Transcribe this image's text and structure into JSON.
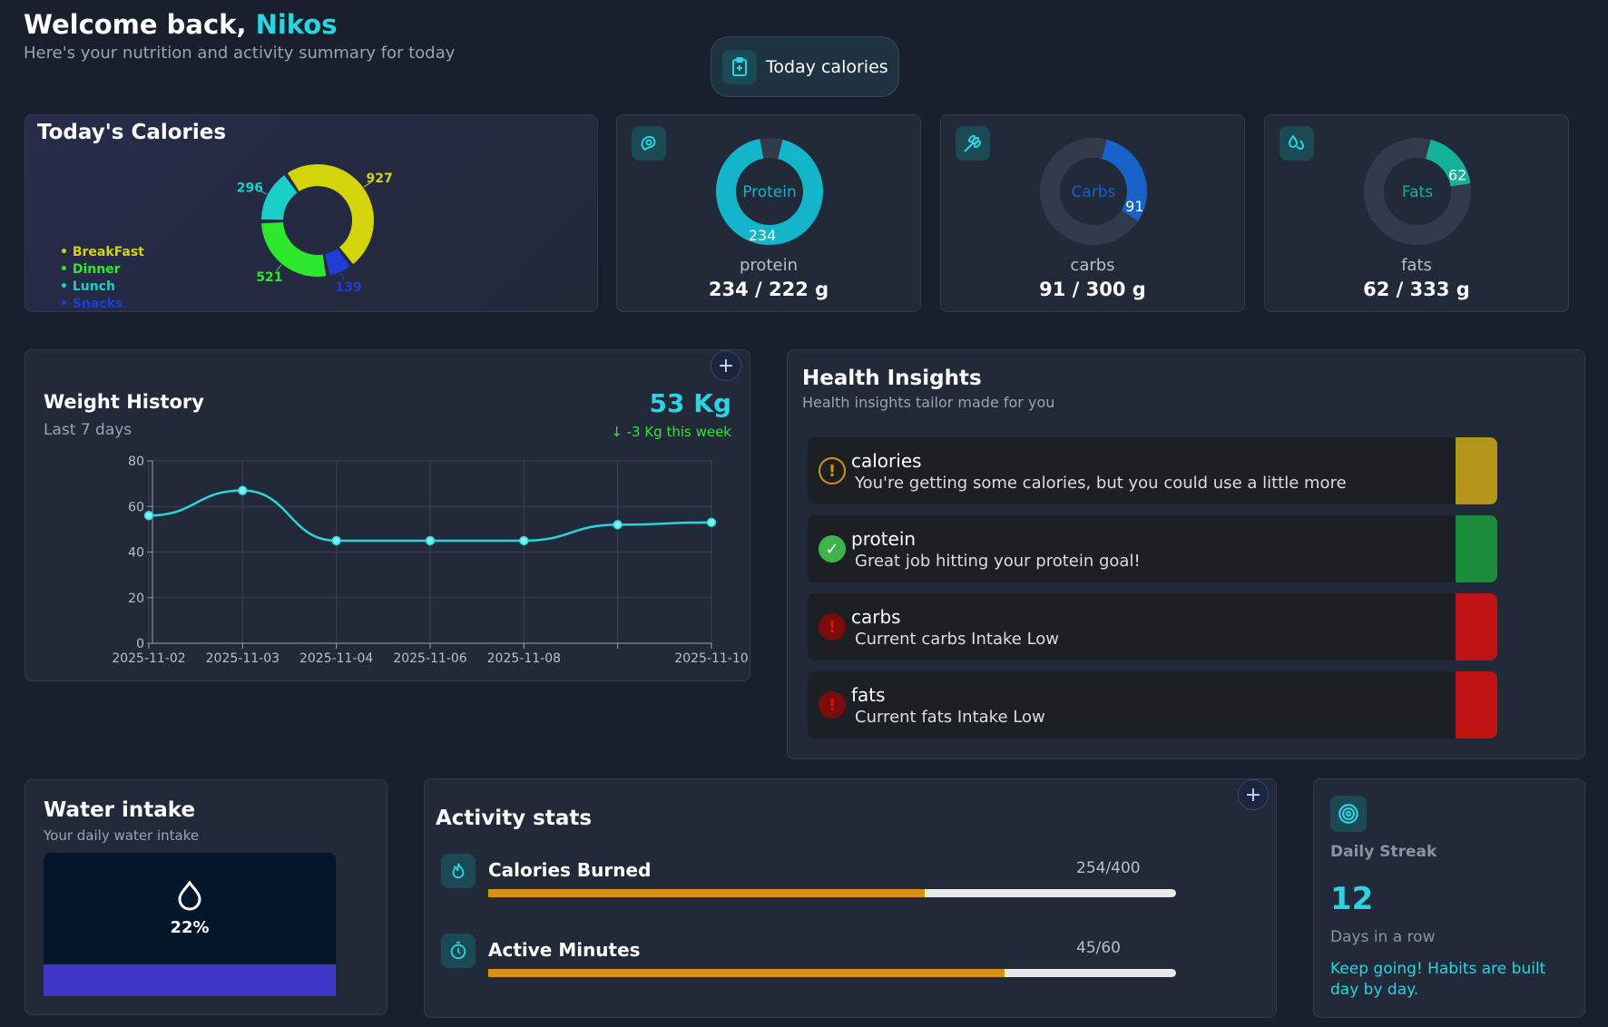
{
  "header": {
    "greeting": "Welcome back,",
    "user_name": "Nikos",
    "subtitle": "Here's your nutrition and activity summary for today",
    "today_button": "Today calories"
  },
  "calories_card": {
    "title": "Today's Calories",
    "legend": [
      {
        "label": "BreakFast",
        "color": "#d4d40a"
      },
      {
        "label": "Dinner",
        "color": "#2ee82e"
      },
      {
        "label": "Lunch",
        "color": "#19d0c8"
      },
      {
        "label": "Snacks",
        "color": "#1e3ed6"
      }
    ]
  },
  "chart_data": [
    {
      "type": "pie",
      "title": "Today's Calories",
      "categories": [
        "BreakFast",
        "Snacks",
        "Dinner",
        "Lunch"
      ],
      "values": [
        927,
        139,
        521,
        296
      ],
      "labels": [
        "927",
        "139",
        "521",
        "296"
      ],
      "colors": [
        "#d4d40a",
        "#1e3ed6",
        "#2ee82e",
        "#19d0c8"
      ],
      "donut": true
    },
    {
      "type": "line",
      "title": "Weight History",
      "x": [
        "2025-11-02",
        "2025-11-03",
        "2025-11-04",
        "2025-11-06",
        "2025-11-08",
        "",
        "2025-11-10"
      ],
      "series": [
        {
          "values": [
            56,
            67,
            45,
            45,
            45,
            52,
            53
          ]
        }
      ],
      "ylim": [
        0,
        80
      ],
      "yticks": [
        0,
        20,
        40,
        60,
        80
      ],
      "grid": true,
      "color": "#2ad4e0"
    }
  ],
  "macros": [
    {
      "center_label": "Protein",
      "current": 234,
      "goal": 222,
      "name": "protein",
      "value_text": "234 / 222 g",
      "color": "#12b5c9",
      "icon": "meat-icon"
    },
    {
      "center_label": "Carbs",
      "current": 91,
      "goal": 300,
      "name": "carbs",
      "value_text": "91 / 300 g",
      "color": "#1763c9",
      "icon": "wheat-icon"
    },
    {
      "center_label": "Fats",
      "current": 62,
      "goal": 333,
      "name": "fats",
      "value_text": "62 / 333 g",
      "color": "#12b39a",
      "icon": "drops-icon"
    }
  ],
  "weight": {
    "title": "Weight History",
    "subtitle": "Last 7 days",
    "current": "53 Kg",
    "change": "-3 Kg this week"
  },
  "insights": {
    "title": "Health Insights",
    "subtitle": "Health insights tailor made for you",
    "items": [
      {
        "title": "calories",
        "desc": "You're getting some calories, but you could use a little more",
        "status": "warning",
        "color": "#b3951c"
      },
      {
        "title": "protein",
        "desc": "Great job hitting your protein goal!",
        "status": "ok",
        "color": "#1a8c3c"
      },
      {
        "title": "carbs",
        "desc": "Current carbs Intake Low",
        "status": "error",
        "color": "#c01414"
      },
      {
        "title": "fats",
        "desc": "Current fats Intake Low",
        "status": "error",
        "color": "#c01414"
      }
    ]
  },
  "water": {
    "title": "Water intake",
    "subtitle": "Your daily water intake",
    "percent_text": "22%",
    "percent": 22
  },
  "activity": {
    "title": "Activity stats",
    "items": [
      {
        "label": "Calories Burned",
        "value_text": "254/400",
        "fraction": 0.635
      },
      {
        "label": "Active Minutes",
        "value_text": "45/60",
        "fraction": 0.75
      }
    ]
  },
  "streak": {
    "label": "Daily Streak",
    "count": "12",
    "unit": "Days in a row",
    "message": "Keep going! Habits are built day by day."
  }
}
